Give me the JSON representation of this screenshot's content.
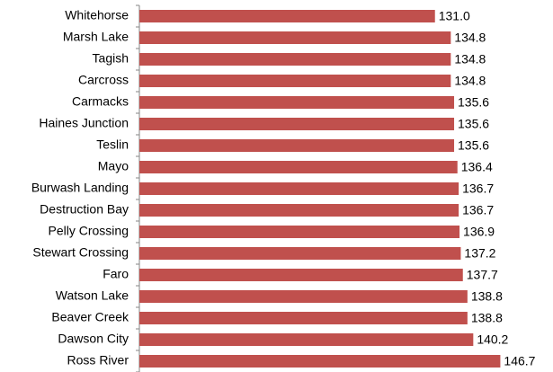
{
  "chart_data": {
    "type": "bar",
    "orientation": "horizontal",
    "categories": [
      "Whitehorse",
      "Marsh Lake",
      "Tagish",
      "Carcross",
      "Carmacks",
      "Haines Junction",
      "Teslin",
      "Mayo",
      "Burwash Landing",
      "Destruction Bay",
      "Pelly Crossing",
      "Stewart Crossing",
      "Faro",
      "Watson Lake",
      "Beaver Creek",
      "Dawson City",
      "Ross River"
    ],
    "values": [
      131.0,
      134.8,
      134.8,
      134.8,
      135.6,
      135.6,
      135.6,
      136.4,
      136.7,
      136.7,
      136.9,
      137.2,
      137.7,
      138.8,
      138.8,
      140.2,
      146.7
    ],
    "value_labels": [
      "131.0",
      "134.8",
      "134.8",
      "134.8",
      "135.6",
      "135.6",
      "135.6",
      "136.4",
      "136.7",
      "136.7",
      "136.9",
      "137.2",
      "137.7",
      "138.8",
      "138.8",
      "140.2",
      "146.7"
    ],
    "color": "#c0504d",
    "xlim": [
      60,
      160
    ]
  }
}
